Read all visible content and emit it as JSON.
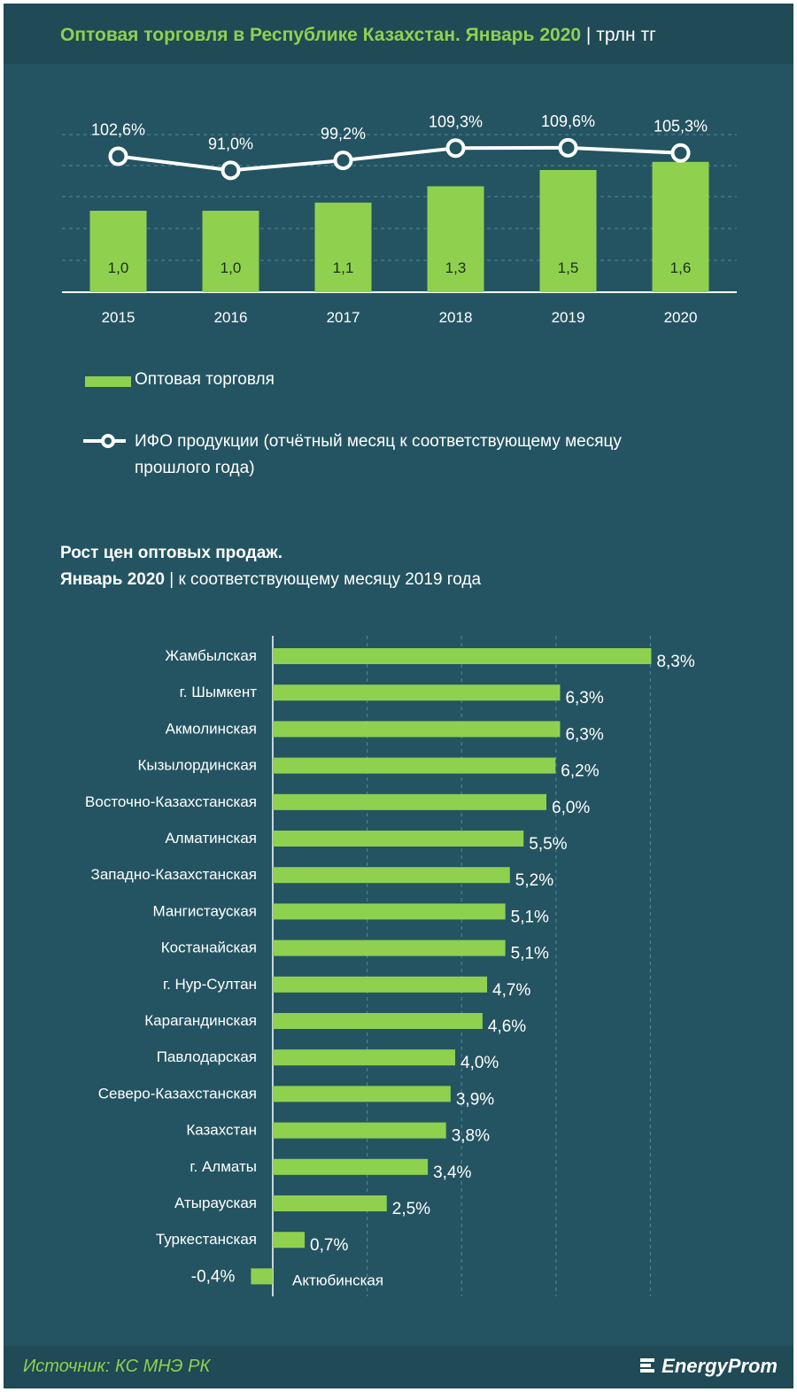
{
  "header": {
    "title": "Оптовая торговля в Республике  Казахстан. Январь 2020",
    "separator": "|",
    "unit": "трлн тг"
  },
  "legend": {
    "bars": "Оптовая торговля",
    "line_1": "ИФО продукции (отчётный месяц к соответствующему месяцу",
    "line_2": "прошлого года)"
  },
  "second_chart": {
    "title_line1": "Рост цен оптовых продаж.",
    "title_line2_bold": "Январь  2020",
    "title_line2_sep": "|",
    "title_line2_rest": "к соответствующему месяцу 2019 года"
  },
  "colors": {
    "background": "#245462",
    "header": "#1f4a56",
    "accent_green": "#8fd14f",
    "text": "#ffffff",
    "grid": "#4f8a98"
  },
  "chart_data": [
    {
      "type": "bar",
      "categories": [
        "2015",
        "2016",
        "2017",
        "2018",
        "2019",
        "2020"
      ],
      "series": [
        {
          "name": "Оптовая торговля",
          "values": [
            1.0,
            1.0,
            1.1,
            1.3,
            1.5,
            1.6
          ],
          "labels": [
            "1,0",
            "1,0",
            "1,1",
            "1,3",
            "1,5",
            "1,6"
          ]
        },
        {
          "name": "ИФО продукции (отчётный месяц к соответствующему месяцу прошлого года)",
          "type": "line",
          "values": [
            102.6,
            91.0,
            99.2,
            109.3,
            109.6,
            105.3
          ],
          "labels": [
            "102,6%",
            "91,0%",
            "99,2%",
            "109,3%",
            "109,6%",
            "105,3%"
          ]
        }
      ],
      "grid": true
    },
    {
      "type": "bar",
      "orientation": "horizontal",
      "categories": [
        "Жамбылская",
        "г. Шымкент",
        "Акмолинская",
        "Кызылординская",
        "Восточно-Казахстанская",
        "Алматинская",
        "Западно-Казахстанская",
        "Мангистауская",
        "Костанайская",
        "г. Нур-Султан",
        "Карагандинская",
        "Павлодарская",
        "Северо-Казахстанская",
        "Казахстан",
        "г. Алматы",
        "Атырауская",
        "Туркестанская",
        "Актюбинская"
      ],
      "values": [
        8.3,
        6.3,
        6.3,
        6.2,
        6.0,
        5.5,
        5.2,
        5.1,
        5.1,
        4.7,
        4.6,
        4.0,
        3.9,
        3.8,
        3.4,
        2.5,
        0.7,
        -0.4
      ],
      "labels": [
        "8,3%",
        "6,3%",
        "6,3%",
        "6,2%",
        "6,0%",
        "5,5%",
        "5,2%",
        "5,1%",
        "5,1%",
        "4,7%",
        "4,6%",
        "4,0%",
        "3,9%",
        "3,8%",
        "3,4%",
        "2,5%",
        "0,7%",
        "-0,4%"
      ],
      "grid": true
    }
  ],
  "footer": {
    "source": "Источник: КС МНЭ РК",
    "brand": "EnergyProm"
  }
}
